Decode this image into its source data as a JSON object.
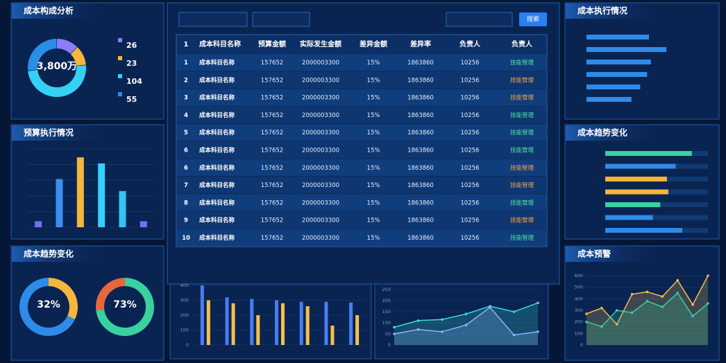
{
  "cost_composition": {
    "title": "成本构成分析",
    "center_value": "3,800万",
    "values": [
      26,
      23,
      104,
      55
    ],
    "colors": [
      "#8b7cf8",
      "#f6b53d",
      "#35d0f6",
      "#2a8ee8"
    ]
  },
  "budget_execution": {
    "title": "预算执行情况",
    "values": [
      5,
      40,
      58,
      53,
      30,
      5
    ],
    "colors": [
      "#7b6cf6",
      "#3a8ff0",
      "#f6b53d",
      "#35d0f6",
      "#35c4f0",
      "#7b6cf6"
    ],
    "ylim": [
      0,
      65
    ]
  },
  "cost_trend_gauges": {
    "title": "成本趋势变化",
    "gauges": [
      {
        "value": 32,
        "label": "32%",
        "color": "#f6b53d",
        "track": "#2f8be8"
      },
      {
        "value": 73,
        "label": "73%",
        "color": "#3ad0a0",
        "track": "#e8663c"
      }
    ]
  },
  "table": {
    "search_button": "搜索",
    "headers": [
      "1",
      "成本科目名称",
      "预算金额",
      "实际发生金额",
      "差异金额",
      "差异率",
      "负责人",
      "负责人"
    ],
    "rows": [
      [
        "1",
        "成本科目名称",
        "157652",
        "2000003300",
        "15%",
        "1863860",
        "10256",
        "技能管理"
      ],
      [
        "2",
        "成本科目名称",
        "157652",
        "2000003300",
        "15%",
        "1863860",
        "10256",
        "技能管理"
      ],
      [
        "3",
        "成本科目名称",
        "157652",
        "2000003300",
        "15%",
        "1863860",
        "10256",
        "技能管理"
      ],
      [
        "4",
        "成本科目名称",
        "157652",
        "2000003300",
        "15%",
        "1863860",
        "10256",
        "技能管理"
      ],
      [
        "5",
        "成本科目名称",
        "157652",
        "2000003300",
        "15%",
        "1863860",
        "10256",
        "技能管理"
      ],
      [
        "6",
        "成本科目名称",
        "157652",
        "2000003300",
        "15%",
        "1863860",
        "10256",
        "技能管理"
      ],
      [
        "6",
        "成本科目名称",
        "157652",
        "2000003300",
        "15%",
        "1863860",
        "10256",
        "技能管理"
      ],
      [
        "7",
        "成本科目名称",
        "157652",
        "2000003300",
        "15%",
        "1863860",
        "10256",
        "技能管理"
      ],
      [
        "8",
        "成本科目名称",
        "157652",
        "2000003300",
        "15%",
        "1863860",
        "10256",
        "技能管理"
      ],
      [
        "9",
        "成本科目名称",
        "157652",
        "2000003300",
        "15%",
        "1863860",
        "10256",
        "技能管理"
      ],
      [
        "10",
        "成本科目名称",
        "157652",
        "2000003300",
        "15%",
        "1863860",
        "10256",
        "技能管理"
      ]
    ],
    "manager_colors": [
      "#4fe0a0",
      "#f6a04a",
      "#f6a04a",
      "#4fe0a0",
      "#4fe0a0",
      "#4fe0a0",
      "#f6a04a",
      "#f6a04a",
      "#4fe0a0",
      "#f6a04a",
      "#4fe0a0"
    ]
  },
  "bottom_bars": {
    "ylim": [
      0,
      400
    ],
    "yticks": [
      0,
      100,
      200,
      300,
      400
    ],
    "series": [
      {
        "color": "#4a7cf0",
        "values": [
          400,
          320,
          310,
          300,
          290,
          290,
          285
        ]
      },
      {
        "color": "#f6c04a",
        "values": [
          300,
          280,
          200,
          280,
          260,
          130,
          200
        ]
      }
    ]
  },
  "bottom_lines": {
    "ylim": [
      0,
      250
    ],
    "yticks": [
      0,
      50,
      100,
      150,
      200,
      250
    ],
    "series": [
      {
        "color": "#3ee0d0",
        "values": [
          80,
          110,
          115,
          140,
          175,
          150,
          190
        ]
      },
      {
        "color": "#8fb4ff",
        "values": [
          50,
          70,
          60,
          90,
          170,
          45,
          60
        ]
      }
    ]
  },
  "cost_execution": {
    "title": "成本执行情况",
    "xlim": [
      0,
      200
    ],
    "values": [
      100,
      128,
      103,
      97,
      86,
      72
    ],
    "color": "#2f8be8"
  },
  "cost_trend_bars": {
    "title": "成本趋势变化",
    "xlim": [
      0,
      140
    ],
    "values": [
      118,
      96,
      84,
      86,
      75,
      65,
      105
    ],
    "colors": [
      "#3ad0a0",
      "#2f8be8",
      "#f6b53d",
      "#f6b53d",
      "#3ad0a0",
      "#2f8be8",
      "#2f8be8"
    ]
  },
  "cost_warning": {
    "title": "成本预警",
    "ylim": [
      0,
      600
    ],
    "yticks": [
      0,
      100,
      200,
      300,
      400,
      500,
      600
    ],
    "series": [
      {
        "color": "#f6c04a",
        "values": [
          270,
          320,
          180,
          440,
          460,
          420,
          560,
          350,
          600
        ]
      },
      {
        "color": "#3ad0a0",
        "values": [
          200,
          160,
          300,
          280,
          380,
          330,
          450,
          250,
          360
        ]
      }
    ]
  }
}
